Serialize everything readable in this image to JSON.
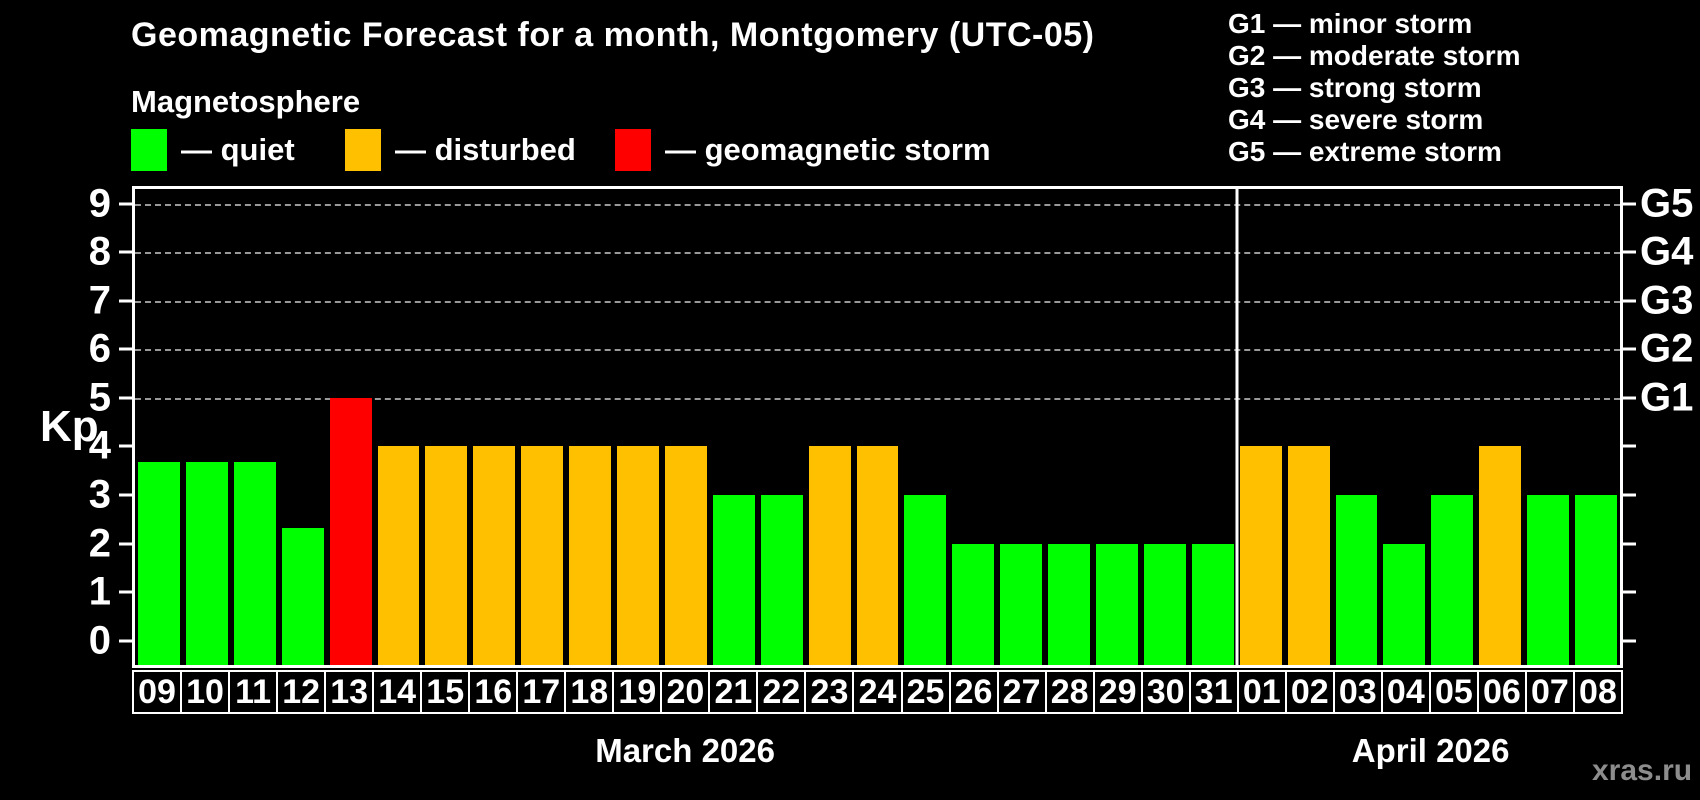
{
  "page": {
    "title": "Geomagnetic Forecast for a month, Montgomery (UTC-05)",
    "subtitle": "Magnetosphere",
    "watermark": "xras.ru"
  },
  "legend": {
    "items": [
      {
        "name": "quiet",
        "label": "— quiet",
        "color": "#00ff00"
      },
      {
        "name": "disturbed",
        "label": "— disturbed",
        "color": "#ffc000"
      },
      {
        "name": "storm",
        "label": "— geomagnetic storm",
        "color": "#ff0000"
      }
    ]
  },
  "g_scale_legend": {
    "items": [
      "G1 — minor storm",
      "G2 — moderate storm",
      "G3 — strong storm",
      "G4 — severe storm",
      "G5 — extreme storm"
    ]
  },
  "chart_data": {
    "type": "bar",
    "title": "Geomagnetic Forecast for a month, Montgomery (UTC-05)",
    "xlabel": "",
    "ylabel": "Kp",
    "ylim": [
      0,
      9
    ],
    "axis_min": -0.5,
    "axis_max": 9.3,
    "yticks": [
      0,
      1,
      2,
      3,
      4,
      5,
      6,
      7,
      8,
      9
    ],
    "right_axis_labels": {
      "5": "G1",
      "6": "G2",
      "7": "G3",
      "8": "G4",
      "9": "G5"
    },
    "gridlines_at": [
      5,
      6,
      7,
      8,
      9
    ],
    "grid": "dashed horizontal lines at storm levels G1–G5 only",
    "legend_position": "top-left",
    "colors": {
      "quiet": "#00ff00",
      "disturbed": "#ffc000",
      "storm": "#ff0000"
    },
    "divider_after_index": 22,
    "months": [
      {
        "label": "March 2026",
        "days": 23
      },
      {
        "label": "April 2026",
        "days": 8
      }
    ],
    "bars": [
      {
        "day": "09",
        "value": 3.67,
        "status": "quiet"
      },
      {
        "day": "10",
        "value": 3.67,
        "status": "quiet"
      },
      {
        "day": "11",
        "value": 3.67,
        "status": "quiet"
      },
      {
        "day": "12",
        "value": 2.33,
        "status": "quiet"
      },
      {
        "day": "13",
        "value": 5,
        "status": "storm"
      },
      {
        "day": "14",
        "value": 4,
        "status": "disturbed"
      },
      {
        "day": "15",
        "value": 4,
        "status": "disturbed"
      },
      {
        "day": "16",
        "value": 4,
        "status": "disturbed"
      },
      {
        "day": "17",
        "value": 4,
        "status": "disturbed"
      },
      {
        "day": "18",
        "value": 4,
        "status": "disturbed"
      },
      {
        "day": "19",
        "value": 4,
        "status": "disturbed"
      },
      {
        "day": "20",
        "value": 4,
        "status": "disturbed"
      },
      {
        "day": "21",
        "value": 3,
        "status": "quiet"
      },
      {
        "day": "22",
        "value": 3,
        "status": "quiet"
      },
      {
        "day": "23",
        "value": 4,
        "status": "disturbed"
      },
      {
        "day": "24",
        "value": 4,
        "status": "disturbed"
      },
      {
        "day": "25",
        "value": 3,
        "status": "quiet"
      },
      {
        "day": "26",
        "value": 2,
        "status": "quiet"
      },
      {
        "day": "27",
        "value": 2,
        "status": "quiet"
      },
      {
        "day": "28",
        "value": 2,
        "status": "quiet"
      },
      {
        "day": "29",
        "value": 2,
        "status": "quiet"
      },
      {
        "day": "30",
        "value": 2,
        "status": "quiet"
      },
      {
        "day": "31",
        "value": 2,
        "status": "quiet"
      },
      {
        "day": "01",
        "value": 4,
        "status": "disturbed"
      },
      {
        "day": "02",
        "value": 4,
        "status": "disturbed"
      },
      {
        "day": "03",
        "value": 3,
        "status": "quiet"
      },
      {
        "day": "04",
        "value": 2,
        "status": "quiet"
      },
      {
        "day": "05",
        "value": 3,
        "status": "quiet"
      },
      {
        "day": "06",
        "value": 4,
        "status": "disturbed"
      },
      {
        "day": "07",
        "value": 3,
        "status": "quiet"
      },
      {
        "day": "08",
        "value": 3,
        "status": "quiet"
      }
    ]
  }
}
